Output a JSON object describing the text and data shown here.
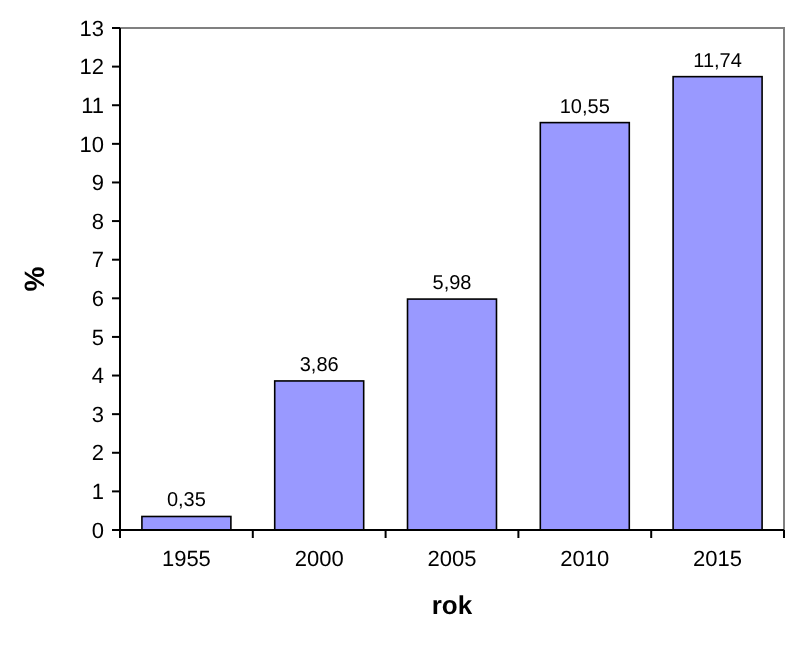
{
  "chart_data": {
    "type": "bar",
    "xlabel": "rok",
    "ylabel": "%",
    "categories": [
      "1955",
      "2000",
      "2005",
      "2010",
      "2015"
    ],
    "values": [
      0.35,
      3.86,
      5.98,
      10.55,
      11.74
    ],
    "value_labels": [
      "0,35",
      "3,86",
      "5,98",
      "10,55",
      "11,74"
    ],
    "color": "#9999ff",
    "ylim": [
      0,
      13
    ],
    "yticks": [
      0,
      1,
      2,
      3,
      4,
      5,
      6,
      7,
      8,
      9,
      10,
      11,
      12,
      13
    ],
    "grid": false
  }
}
